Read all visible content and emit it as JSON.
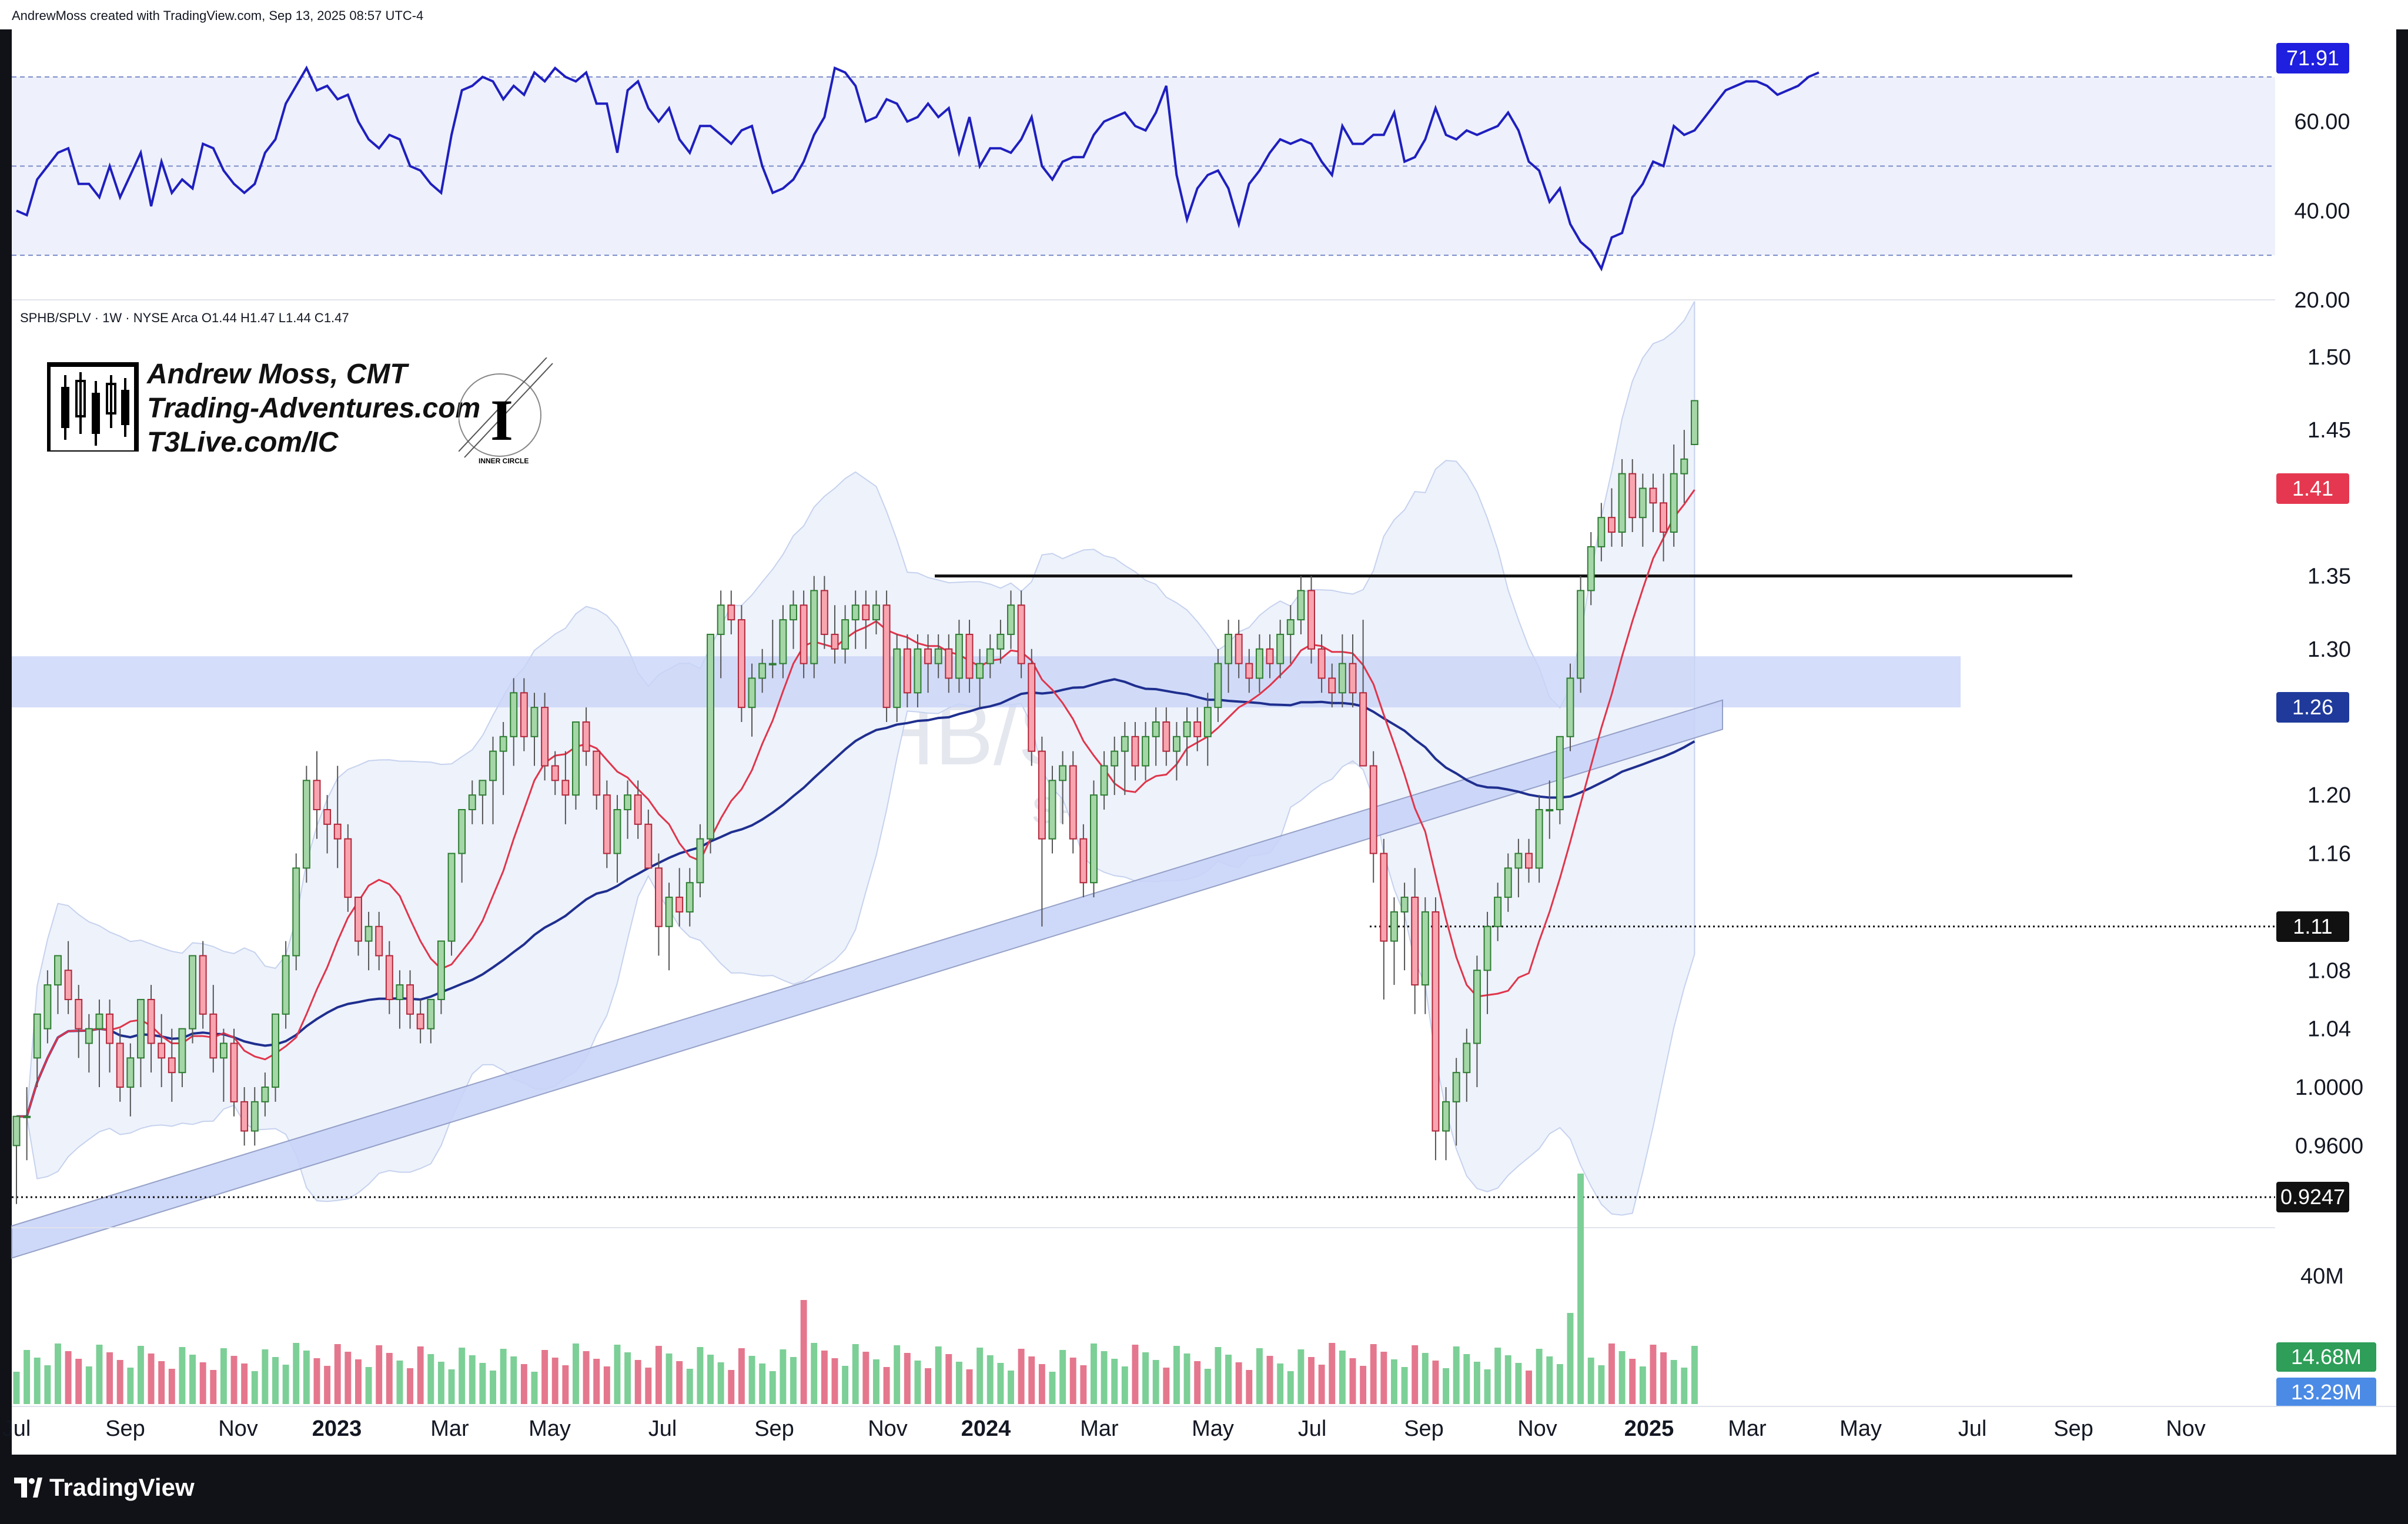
{
  "header": {
    "attribution": "AndrewMoss created with TradingView.com, Sep 13, 2025 08:57 UTC-4"
  },
  "legend": {
    "symbol_line": "SPHB/SPLV · 1W · NYSE Arca  O1.44  H1.47  L1.44  C1.47"
  },
  "watermark": {
    "big": "SPHB/SPLV, 1W",
    "small": "SPHB/SPLV"
  },
  "brand": {
    "line1": "Andrew Moss, CMT",
    "line2": "Trading-Adventures.com",
    "line3": "T3Live.com/IC",
    "inner_circle": "INNER CIRCLE"
  },
  "footer": {
    "logo_text": "TradingView"
  },
  "chart_data": [
    {
      "type": "line",
      "panel": "rsi",
      "series": [
        {
          "name": "",
          "color": "#1f1fbf",
          "values": [
            40,
            39,
            47,
            50,
            53,
            54,
            46,
            46,
            43,
            50,
            43,
            48,
            53,
            41,
            51,
            44,
            47,
            45,
            55,
            54,
            49,
            46,
            44,
            46,
            53,
            56,
            64,
            68,
            72,
            67,
            68,
            65,
            66,
            60,
            56,
            54,
            57,
            56,
            50,
            49,
            46,
            44,
            57,
            67,
            68,
            70,
            69,
            65,
            68,
            66,
            71,
            69,
            72,
            70,
            69,
            71,
            64,
            64,
            53,
            67,
            69,
            63,
            60,
            63,
            56,
            53,
            59,
            59,
            57,
            55,
            58,
            59,
            50,
            44,
            45,
            47,
            51,
            57,
            61,
            72,
            71,
            68,
            60,
            61,
            65,
            64,
            60,
            61,
            64,
            61,
            63,
            53,
            61,
            50,
            54,
            54,
            53,
            56,
            61,
            50,
            47,
            51,
            52,
            52,
            57,
            60,
            61,
            62,
            59,
            58,
            62,
            68,
            48,
            38,
            45,
            48,
            49,
            45,
            37,
            46,
            49,
            53,
            56,
            55,
            56,
            55,
            51,
            48,
            59,
            55,
            55,
            57,
            57,
            62,
            51,
            52,
            56,
            63,
            57,
            56,
            58,
            57,
            58,
            59,
            62,
            58,
            51,
            49,
            42,
            45,
            37,
            33,
            31,
            27,
            34,
            35,
            43,
            46,
            51,
            50,
            59,
            57,
            58,
            61,
            64,
            67,
            68,
            69,
            69,
            68,
            66,
            67,
            68,
            70,
            71
          ]
        }
      ],
      "y_ticks": [
        "60.00",
        "40.00",
        "20.00"
      ],
      "ylim": [
        20,
        80
      ],
      "reference_lines": [
        70,
        50,
        30
      ],
      "last_value_label": "71.91"
    },
    {
      "type": "candlestick",
      "panel": "price",
      "y_ticks": [
        "1.50",
        "1.45",
        "1.35",
        "1.30",
        "1.20",
        "1.16",
        "1.08",
        "1.04",
        "1.0000",
        "0.9600"
      ],
      "ylim": [
        0.905,
        1.535
      ],
      "x_ticks": [
        "Jul",
        "Sep",
        "Nov",
        "2023",
        "Mar",
        "May",
        "Jul",
        "Sep",
        "Nov",
        "2024",
        "Mar",
        "May",
        "Jul",
        "Sep",
        "Nov",
        "2025",
        "Mar",
        "May",
        "Jul",
        "Sep",
        "Nov"
      ],
      "price_tags": [
        {
          "label": "1.41",
          "color": "#e53850"
        },
        {
          "label": "1.26",
          "color": "#1f3a9b"
        },
        {
          "label": "1.11",
          "color": "#111111"
        },
        {
          "label": "0.9247",
          "color": "#111111"
        }
      ],
      "ohlc": [
        [
          0.96,
          0.98,
          0.92,
          0.98
        ],
        [
          0.98,
          1.0,
          0.95,
          0.98
        ],
        [
          1.02,
          1.05,
          1.0,
          1.05
        ],
        [
          1.04,
          1.08,
          1.03,
          1.07
        ],
        [
          1.07,
          1.09,
          1.05,
          1.09
        ],
        [
          1.08,
          1.1,
          1.05,
          1.06
        ],
        [
          1.06,
          1.07,
          1.02,
          1.04
        ],
        [
          1.03,
          1.05,
          1.01,
          1.04
        ],
        [
          1.04,
          1.06,
          1.0,
          1.05
        ],
        [
          1.05,
          1.06,
          1.01,
          1.03
        ],
        [
          1.03,
          1.04,
          0.99,
          1.0
        ],
        [
          1.0,
          1.03,
          0.98,
          1.02
        ],
        [
          1.02,
          1.06,
          1.0,
          1.06
        ],
        [
          1.06,
          1.07,
          1.01,
          1.03
        ],
        [
          1.03,
          1.05,
          1.0,
          1.02
        ],
        [
          1.02,
          1.04,
          0.99,
          1.01
        ],
        [
          1.01,
          1.04,
          1.0,
          1.04
        ],
        [
          1.04,
          1.09,
          1.03,
          1.09
        ],
        [
          1.09,
          1.1,
          1.04,
          1.05
        ],
        [
          1.05,
          1.07,
          1.01,
          1.02
        ],
        [
          1.02,
          1.04,
          0.99,
          1.03
        ],
        [
          1.03,
          1.04,
          0.98,
          0.99
        ],
        [
          0.99,
          1.0,
          0.96,
          0.97
        ],
        [
          0.97,
          1.0,
          0.96,
          0.99
        ],
        [
          0.99,
          1.01,
          0.98,
          1.0
        ],
        [
          1.0,
          1.05,
          0.99,
          1.05
        ],
        [
          1.05,
          1.1,
          1.04,
          1.09
        ],
        [
          1.09,
          1.16,
          1.08,
          1.15
        ],
        [
          1.15,
          1.22,
          1.14,
          1.21
        ],
        [
          1.21,
          1.23,
          1.17,
          1.19
        ],
        [
          1.19,
          1.2,
          1.16,
          1.18
        ],
        [
          1.18,
          1.22,
          1.15,
          1.17
        ],
        [
          1.17,
          1.18,
          1.12,
          1.13
        ],
        [
          1.13,
          1.13,
          1.09,
          1.1
        ],
        [
          1.1,
          1.12,
          1.08,
          1.11
        ],
        [
          1.11,
          1.12,
          1.08,
          1.09
        ],
        [
          1.09,
          1.1,
          1.05,
          1.06
        ],
        [
          1.06,
          1.08,
          1.04,
          1.07
        ],
        [
          1.07,
          1.08,
          1.04,
          1.05
        ],
        [
          1.05,
          1.06,
          1.03,
          1.04
        ],
        [
          1.04,
          1.06,
          1.03,
          1.06
        ],
        [
          1.06,
          1.1,
          1.05,
          1.1
        ],
        [
          1.1,
          1.16,
          1.09,
          1.16
        ],
        [
          1.16,
          1.19,
          1.14,
          1.19
        ],
        [
          1.19,
          1.21,
          1.18,
          1.2
        ],
        [
          1.2,
          1.21,
          1.18,
          1.21
        ],
        [
          1.21,
          1.24,
          1.18,
          1.23
        ],
        [
          1.23,
          1.25,
          1.2,
          1.24
        ],
        [
          1.24,
          1.28,
          1.22,
          1.27
        ],
        [
          1.27,
          1.28,
          1.23,
          1.24
        ],
        [
          1.24,
          1.27,
          1.22,
          1.26
        ],
        [
          1.26,
          1.27,
          1.21,
          1.22
        ],
        [
          1.22,
          1.23,
          1.2,
          1.21
        ],
        [
          1.21,
          1.23,
          1.18,
          1.2
        ],
        [
          1.2,
          1.25,
          1.19,
          1.25
        ],
        [
          1.25,
          1.26,
          1.22,
          1.23
        ],
        [
          1.23,
          1.23,
          1.19,
          1.2
        ],
        [
          1.2,
          1.21,
          1.15,
          1.16
        ],
        [
          1.16,
          1.2,
          1.14,
          1.19
        ],
        [
          1.19,
          1.21,
          1.17,
          1.2
        ],
        [
          1.2,
          1.21,
          1.17,
          1.18
        ],
        [
          1.18,
          1.19,
          1.15,
          1.15
        ],
        [
          1.15,
          1.16,
          1.09,
          1.11
        ],
        [
          1.11,
          1.14,
          1.08,
          1.13
        ],
        [
          1.13,
          1.15,
          1.11,
          1.12
        ],
        [
          1.12,
          1.15,
          1.11,
          1.14
        ],
        [
          1.14,
          1.18,
          1.13,
          1.17
        ],
        [
          1.17,
          1.31,
          1.16,
          1.31
        ],
        [
          1.31,
          1.34,
          1.28,
          1.33
        ],
        [
          1.33,
          1.34,
          1.31,
          1.32
        ],
        [
          1.32,
          1.33,
          1.25,
          1.26
        ],
        [
          1.26,
          1.29,
          1.24,
          1.28
        ],
        [
          1.28,
          1.3,
          1.27,
          1.29
        ],
        [
          1.29,
          1.32,
          1.28,
          1.29
        ],
        [
          1.29,
          1.33,
          1.28,
          1.32
        ],
        [
          1.32,
          1.34,
          1.3,
          1.33
        ],
        [
          1.33,
          1.34,
          1.28,
          1.29
        ],
        [
          1.29,
          1.35,
          1.28,
          1.34
        ],
        [
          1.34,
          1.35,
          1.3,
          1.31
        ],
        [
          1.31,
          1.33,
          1.29,
          1.3
        ],
        [
          1.3,
          1.33,
          1.29,
          1.32
        ],
        [
          1.32,
          1.34,
          1.3,
          1.33
        ],
        [
          1.33,
          1.34,
          1.3,
          1.32
        ],
        [
          1.32,
          1.34,
          1.31,
          1.33
        ],
        [
          1.33,
          1.34,
          1.25,
          1.26
        ],
        [
          1.26,
          1.31,
          1.25,
          1.3
        ],
        [
          1.3,
          1.31,
          1.26,
          1.27
        ],
        [
          1.27,
          1.31,
          1.26,
          1.3
        ],
        [
          1.3,
          1.31,
          1.27,
          1.29
        ],
        [
          1.29,
          1.31,
          1.28,
          1.3
        ],
        [
          1.3,
          1.31,
          1.27,
          1.28
        ],
        [
          1.28,
          1.32,
          1.27,
          1.31
        ],
        [
          1.31,
          1.32,
          1.27,
          1.28
        ],
        [
          1.28,
          1.3,
          1.26,
          1.29
        ],
        [
          1.29,
          1.31,
          1.28,
          1.3
        ],
        [
          1.3,
          1.32,
          1.29,
          1.31
        ],
        [
          1.31,
          1.34,
          1.3,
          1.33
        ],
        [
          1.33,
          1.34,
          1.28,
          1.29
        ],
        [
          1.29,
          1.3,
          1.22,
          1.23
        ],
        [
          1.23,
          1.24,
          1.11,
          1.17
        ],
        [
          1.17,
          1.22,
          1.16,
          1.21
        ],
        [
          1.21,
          1.23,
          1.18,
          1.22
        ],
        [
          1.22,
          1.23,
          1.16,
          1.17
        ],
        [
          1.17,
          1.18,
          1.13,
          1.14
        ],
        [
          1.14,
          1.21,
          1.13,
          1.2
        ],
        [
          1.2,
          1.23,
          1.19,
          1.22
        ],
        [
          1.22,
          1.24,
          1.2,
          1.23
        ],
        [
          1.23,
          1.25,
          1.2,
          1.24
        ],
        [
          1.24,
          1.25,
          1.21,
          1.22
        ],
        [
          1.22,
          1.25,
          1.21,
          1.24
        ],
        [
          1.24,
          1.26,
          1.22,
          1.25
        ],
        [
          1.25,
          1.26,
          1.22,
          1.23
        ],
        [
          1.23,
          1.25,
          1.21,
          1.24
        ],
        [
          1.24,
          1.26,
          1.22,
          1.25
        ],
        [
          1.25,
          1.26,
          1.23,
          1.24
        ],
        [
          1.24,
          1.27,
          1.22,
          1.26
        ],
        [
          1.26,
          1.3,
          1.25,
          1.29
        ],
        [
          1.29,
          1.32,
          1.27,
          1.31
        ],
        [
          1.31,
          1.32,
          1.28,
          1.29
        ],
        [
          1.29,
          1.3,
          1.27,
          1.28
        ],
        [
          1.28,
          1.31,
          1.27,
          1.3
        ],
        [
          1.3,
          1.31,
          1.28,
          1.29
        ],
        [
          1.29,
          1.32,
          1.28,
          1.31
        ],
        [
          1.31,
          1.33,
          1.29,
          1.32
        ],
        [
          1.32,
          1.35,
          1.31,
          1.34
        ],
        [
          1.34,
          1.35,
          1.29,
          1.3
        ],
        [
          1.3,
          1.31,
          1.27,
          1.28
        ],
        [
          1.28,
          1.29,
          1.26,
          1.27
        ],
        [
          1.27,
          1.31,
          1.26,
          1.29
        ],
        [
          1.29,
          1.31,
          1.26,
          1.27
        ],
        [
          1.27,
          1.32,
          1.22,
          1.22
        ],
        [
          1.22,
          1.23,
          1.14,
          1.16
        ],
        [
          1.16,
          1.17,
          1.06,
          1.1
        ],
        [
          1.1,
          1.13,
          1.07,
          1.12
        ],
        [
          1.12,
          1.14,
          1.08,
          1.13
        ],
        [
          1.13,
          1.15,
          1.05,
          1.07
        ],
        [
          1.07,
          1.13,
          1.05,
          1.12
        ],
        [
          1.12,
          1.13,
          0.95,
          0.97
        ],
        [
          0.97,
          1.0,
          0.95,
          0.99
        ],
        [
          0.99,
          1.02,
          0.96,
          1.01
        ],
        [
          1.01,
          1.04,
          0.99,
          1.03
        ],
        [
          1.03,
          1.09,
          1.0,
          1.08
        ],
        [
          1.08,
          1.12,
          1.05,
          1.11
        ],
        [
          1.11,
          1.14,
          1.1,
          1.13
        ],
        [
          1.13,
          1.16,
          1.12,
          1.15
        ],
        [
          1.15,
          1.17,
          1.13,
          1.16
        ],
        [
          1.16,
          1.17,
          1.14,
          1.15
        ],
        [
          1.15,
          1.2,
          1.14,
          1.19
        ],
        [
          1.19,
          1.21,
          1.17,
          1.19
        ],
        [
          1.19,
          1.24,
          1.18,
          1.24
        ],
        [
          1.24,
          1.29,
          1.23,
          1.28
        ],
        [
          1.28,
          1.35,
          1.27,
          1.34
        ],
        [
          1.34,
          1.38,
          1.33,
          1.37
        ],
        [
          1.37,
          1.4,
          1.36,
          1.39
        ],
        [
          1.39,
          1.41,
          1.37,
          1.38
        ],
        [
          1.38,
          1.43,
          1.37,
          1.42
        ],
        [
          1.42,
          1.43,
          1.38,
          1.39
        ],
        [
          1.39,
          1.42,
          1.37,
          1.41
        ],
        [
          1.41,
          1.42,
          1.38,
          1.4
        ],
        [
          1.4,
          1.42,
          1.36,
          1.38
        ],
        [
          1.38,
          1.44,
          1.37,
          1.42
        ],
        [
          1.42,
          1.45,
          1.4,
          1.43
        ],
        [
          1.44,
          1.47,
          1.44,
          1.47
        ]
      ],
      "volume_labels": [
        "40M",
        "14.68M",
        "13.29M"
      ]
    }
  ]
}
